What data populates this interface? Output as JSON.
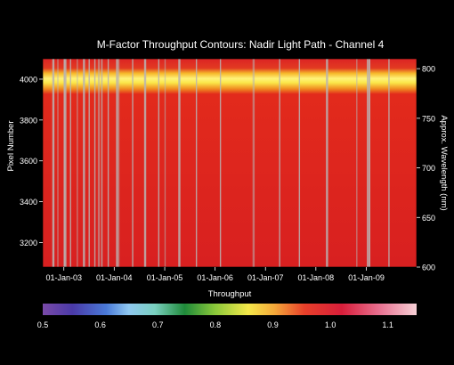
{
  "chart_data": {
    "type": "heatmap",
    "title": "M-Factor Throughput Contours: Nadir Light Path - Channel 4",
    "xlabel": "Throughput",
    "ylabel_left": "Pixel Number",
    "ylabel_right": "Approx. Wavelength (nm)",
    "x_ticks": [
      "01-Jan-03",
      "01-Jan-04",
      "01-Jan-05",
      "01-Jan-06",
      "01-Jan-07",
      "01-Jan-08",
      "01-Jan-09"
    ],
    "x_range": [
      "2002-08-01",
      "2009-12-31"
    ],
    "y_left_ticks": [
      3200,
      3400,
      3600,
      3800,
      4000
    ],
    "y_left_range": [
      3080,
      4100
    ],
    "y_right_ticks": [
      600,
      650,
      700,
      750,
      800
    ],
    "y_right_range": [
      600,
      810
    ],
    "colorbar": {
      "range": [
        0.5,
        1.15
      ],
      "ticks": [
        "0.5",
        "0.6",
        "0.7",
        "0.8",
        "0.9",
        "1.0",
        "1.1"
      ],
      "tick_values": [
        0.5,
        0.6,
        0.7,
        0.8,
        0.9,
        1.0,
        1.1
      ]
    },
    "bands": [
      {
        "pixel_range": [
          3080,
          3950
        ],
        "throughput": 1.02
      },
      {
        "pixel_range": [
          3950,
          4040
        ],
        "throughput": 0.88
      },
      {
        "pixel_range": [
          4040,
          4100
        ],
        "throughput": 1.04
      }
    ],
    "gap_dates": [
      "2002-10-15",
      "2002-11-20",
      "2003-01-05",
      "2003-01-10",
      "2003-02-20",
      "2003-04-10",
      "2003-05-25",
      "2003-07-05",
      "2003-08-15",
      "2003-09-10",
      "2003-10-05",
      "2003-11-20",
      "2004-01-20",
      "2004-02-05",
      "2004-05-15",
      "2004-08-10",
      "2004-11-20",
      "2005-01-05",
      "2005-04-15",
      "2005-08-20",
      "2006-02-10",
      "2006-10-05",
      "2007-04-15",
      "2007-09-05",
      "2008-03-20",
      "2008-10-25",
      "2009-01-10",
      "2009-01-20",
      "2009-06-15"
    ]
  }
}
